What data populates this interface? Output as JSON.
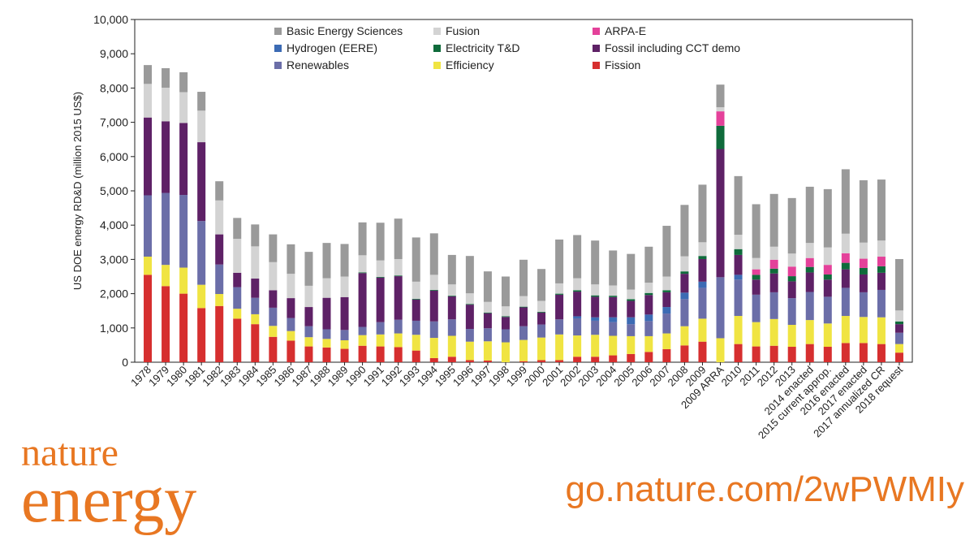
{
  "chart_data": {
    "type": "bar",
    "stacked": true,
    "title": "",
    "xlabel": "",
    "ylabel": "US DOE energy RD&D (million 2015 US$)",
    "ylim": [
      0,
      10000
    ],
    "yticks": [
      "0",
      "1,000",
      "2,000",
      "3,000",
      "4,000",
      "5,000",
      "6,000",
      "7,000",
      "8,000",
      "9,000",
      "10,000"
    ],
    "grid": false,
    "legend_position": "top",
    "categories": [
      "1978",
      "1979",
      "1980",
      "1981",
      "1982",
      "1983",
      "1984",
      "1985",
      "1986",
      "1987",
      "1988",
      "1989",
      "1990",
      "1991",
      "1992",
      "1993",
      "1994",
      "1995",
      "1996",
      "1997",
      "1998",
      "1999",
      "2000",
      "2001",
      "2002",
      "2003",
      "2004",
      "2005",
      "2006",
      "2007",
      "2008",
      "2009",
      "2009 ARRA",
      "2010",
      "2011",
      "2012",
      "2013",
      "2014 enacted",
      "2015 current approp.",
      "2016 enacted",
      "2017 enacted",
      "2017 annualized CR",
      "2018 request"
    ],
    "series": [
      {
        "name": "Fission",
        "color": "#d62f2f",
        "values": [
          2550,
          2220,
          2000,
          1580,
          1640,
          1270,
          1110,
          740,
          630,
          460,
          430,
          390,
          480,
          460,
          440,
          340,
          120,
          160,
          60,
          50,
          0,
          30,
          60,
          60,
          160,
          160,
          200,
          240,
          300,
          380,
          490,
          600,
          0,
          530,
          460,
          480,
          450,
          530,
          450,
          560,
          560,
          530,
          280
        ]
      },
      {
        "name": "Efficiency",
        "color": "#f0e442",
        "values": [
          530,
          620,
          760,
          680,
          350,
          290,
          290,
          320,
          280,
          270,
          250,
          250,
          310,
          350,
          400,
          460,
          590,
          610,
          540,
          560,
          580,
          620,
          660,
          750,
          620,
          640,
          570,
          520,
          460,
          460,
          560,
          670,
          700,
          820,
          710,
          780,
          640,
          700,
          680,
          790,
          760,
          780,
          250
        ]
      },
      {
        "name": "Renewables",
        "color": "#6b6ea8",
        "values": [
          1790,
          2100,
          2120,
          1860,
          860,
          630,
          480,
          530,
          380,
          320,
          280,
          300,
          240,
          360,
          400,
          410,
          480,
          480,
          370,
          380,
          380,
          400,
          380,
          440,
          500,
          410,
          400,
          350,
          440,
          580,
          790,
          900,
          1780,
          1060,
          800,
          780,
          780,
          820,
          780,
          820,
          720,
          800,
          330
        ]
      },
      {
        "name": "Hydrogen (EERE)",
        "color": "#3c6bb4",
        "values": [
          0,
          0,
          0,
          0,
          0,
          0,
          0,
          0,
          0,
          0,
          0,
          0,
          0,
          0,
          0,
          0,
          0,
          0,
          0,
          0,
          0,
          0,
          0,
          0,
          60,
          100,
          140,
          200,
          190,
          190,
          190,
          180,
          0,
          140,
          0,
          0,
          0,
          0,
          0,
          0,
          0,
          0,
          0
        ]
      },
      {
        "name": "Fossil including CCT demo",
        "color": "#5e2166",
        "values": [
          2270,
          2090,
          2100,
          2300,
          880,
          420,
          560,
          510,
          580,
          560,
          920,
          960,
          1570,
          1300,
          1270,
          620,
          900,
          670,
          710,
          440,
          360,
          550,
          350,
          720,
          720,
          600,
          590,
          480,
          570,
          430,
          550,
          660,
          3740,
          580,
          440,
          550,
          490,
          570,
          500,
          540,
          520,
          500,
          250
        ]
      },
      {
        "name": "Electricity T&D",
        "color": "#0f6b3b",
        "values": [
          0,
          0,
          0,
          0,
          0,
          0,
          0,
          0,
          0,
          0,
          0,
          0,
          20,
          20,
          20,
          20,
          20,
          20,
          20,
          20,
          20,
          20,
          20,
          30,
          40,
          40,
          40,
          50,
          60,
          60,
          70,
          90,
          680,
          170,
          140,
          140,
          150,
          160,
          150,
          190,
          190,
          190,
          80
        ]
      },
      {
        "name": "ARPA-E",
        "color": "#e4419a",
        "values": [
          0,
          0,
          0,
          0,
          0,
          0,
          0,
          0,
          0,
          0,
          0,
          0,
          0,
          0,
          0,
          0,
          0,
          0,
          0,
          0,
          0,
          0,
          0,
          0,
          0,
          0,
          0,
          0,
          0,
          0,
          0,
          0,
          420,
          0,
          160,
          260,
          280,
          260,
          280,
          280,
          270,
          280,
          0
        ]
      },
      {
        "name": "Fusion",
        "color": "#d3d3d3",
        "values": [
          980,
          980,
          900,
          920,
          990,
          990,
          940,
          820,
          710,
          620,
          570,
          600,
          500,
          480,
          480,
          500,
          440,
          330,
          310,
          310,
          290,
          310,
          320,
          300,
          350,
          320,
          300,
          280,
          300,
          400,
          440,
          400,
          120,
          420,
          330,
          380,
          380,
          440,
          510,
          570,
          470,
          470,
          320
        ]
      },
      {
        "name": "Basic Energy Sciences",
        "color": "#9a9a9a",
        "values": [
          550,
          570,
          580,
          550,
          560,
          610,
          640,
          810,
          860,
          990,
          1030,
          950,
          960,
          1100,
          1180,
          1290,
          1210,
          860,
          1090,
          890,
          870,
          1060,
          930,
          1280,
          1260,
          1280,
          1020,
          1040,
          1050,
          1480,
          1500,
          1680,
          660,
          1710,
          1570,
          1540,
          1620,
          1640,
          1700,
          1880,
          1820,
          1780,
          1500
        ]
      }
    ],
    "legend_order": [
      "Basic Energy Sciences",
      "Fusion",
      "ARPA-E",
      "Hydrogen (EERE)",
      "Electricity T&D",
      "Fossil including CCT demo",
      "Renewables",
      "Efficiency",
      "Fission"
    ]
  },
  "branding": {
    "journal_line1": "nature",
    "journal_line2": "energy",
    "url": "go.nature.com/2wPWMIy"
  }
}
